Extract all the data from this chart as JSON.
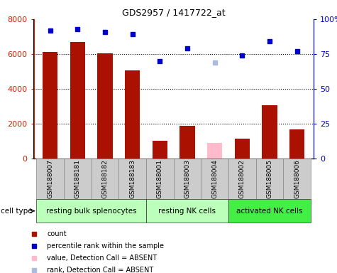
{
  "title": "GDS2957 / 1417722_at",
  "samples": [
    "GSM188007",
    "GSM188181",
    "GSM188182",
    "GSM188183",
    "GSM188001",
    "GSM188003",
    "GSM188004",
    "GSM188002",
    "GSM188005",
    "GSM188006"
  ],
  "bar_values": [
    6100,
    6700,
    6050,
    5050,
    1020,
    1850,
    900,
    1150,
    3050,
    1680
  ],
  "bar_colors": [
    "#aa1100",
    "#aa1100",
    "#aa1100",
    "#aa1100",
    "#aa1100",
    "#aa1100",
    "#ffbbcc",
    "#aa1100",
    "#aa1100",
    "#aa1100"
  ],
  "rank_values": [
    92,
    93,
    91,
    89,
    70,
    79,
    69,
    74,
    84,
    77
  ],
  "rank_colors": [
    "#0000cc",
    "#0000cc",
    "#0000cc",
    "#0000cc",
    "#0000cc",
    "#0000cc",
    "#aabbdd",
    "#0000cc",
    "#0000cc",
    "#0000cc"
  ],
  "ylim_left": [
    0,
    8000
  ],
  "ylim_right": [
    0,
    100
  ],
  "yticks_left": [
    0,
    2000,
    4000,
    6000,
    8000
  ],
  "yticks_right": [
    0,
    25,
    50,
    75,
    100
  ],
  "group_defs": [
    {
      "start": 0,
      "end": 3,
      "label": "resting bulk splenocytes",
      "color": "#bbffbb"
    },
    {
      "start": 4,
      "end": 6,
      "label": "resting NK cells",
      "color": "#bbffbb"
    },
    {
      "start": 7,
      "end": 9,
      "label": "activated NK cells",
      "color": "#44ee44"
    }
  ],
  "cell_type_label": "cell type",
  "legend_colors": [
    "#aa1100",
    "#0000cc",
    "#ffbbcc",
    "#aabbdd"
  ],
  "legend_labels": [
    "count",
    "percentile rank within the sample",
    "value, Detection Call = ABSENT",
    "rank, Detection Call = ABSENT"
  ],
  "left_tick_color": "#cc2200",
  "right_tick_color": "#0000cc",
  "sample_box_color": "#cccccc",
  "sample_box_edge": "#888888"
}
